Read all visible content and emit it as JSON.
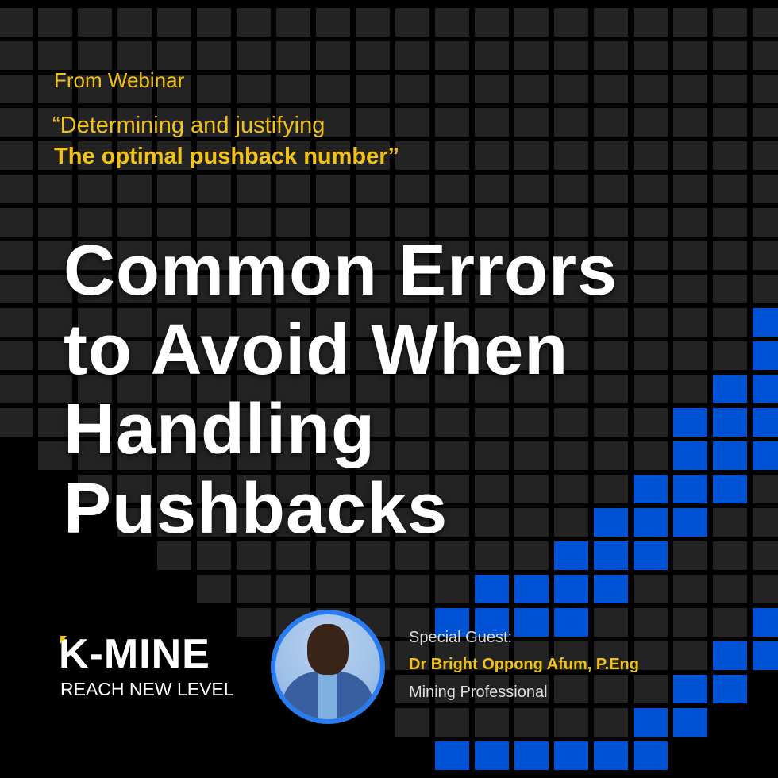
{
  "header": {
    "label": "From Webinar",
    "quote_line1": "“Determining and justifying",
    "quote_line2": "The optimal pushback number”"
  },
  "title": {
    "lines": [
      "Common Errors",
      "to Avoid When",
      "Handling",
      "Pushbacks"
    ]
  },
  "brand": {
    "logo": "K-MINE",
    "tagline": "REACH NEW LEVEL"
  },
  "guest": {
    "label": "Special Guest:",
    "name": "Dr Bright Oppong Afum, P.Eng",
    "role": "Mining Professional"
  },
  "colors": {
    "accent_yellow": "#f2c21b",
    "accent_blue": "#0052d4",
    "tile": "#232323",
    "background": "#000000"
  }
}
